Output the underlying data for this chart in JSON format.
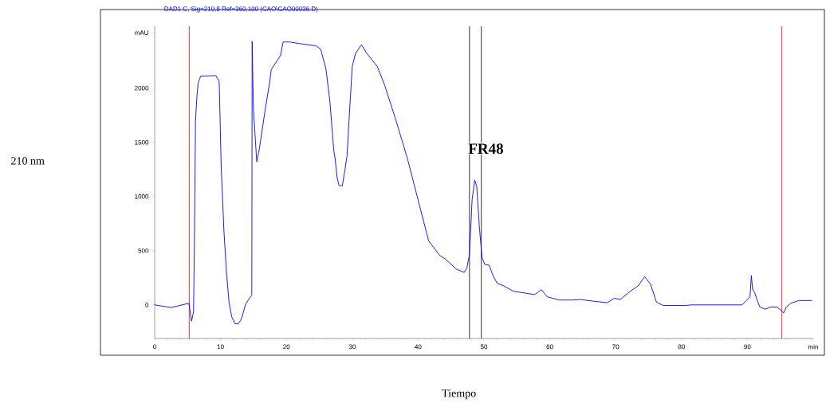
{
  "chart_data": {
    "type": "line",
    "title": "DAD1 C, Sig=210,8 Ref=360,100 (CAO\\CAO00036.D)",
    "xlabel": "Tiempo",
    "series": [
      {
        "color": "#0000ff",
        "x": [
          0,
          2.5,
          5.2,
          5.6,
          5.9,
          6.0,
          6.1,
          6.2,
          6.4,
          6.6,
          7.0,
          9.3,
          9.8,
          10.1,
          10.3,
          10.5,
          10.9,
          11.3,
          11.7,
          12.2,
          12.7,
          13.2,
          13.8,
          14.6,
          14.75,
          14.8,
          14.85,
          15.0,
          15.5,
          15.9,
          16.8,
          17.5,
          17.7,
          19.1,
          19.5,
          20.5,
          22,
          24.5,
          25.2,
          26.0,
          26.6,
          27.2,
          27.4,
          27.7,
          28.0,
          28.5,
          28.9,
          29.2,
          29.5,
          30.0,
          30.5,
          31.4,
          32.2,
          33.8,
          34.9,
          36.6,
          38.4,
          41.6,
          43.3,
          44.1,
          45.8,
          47.0,
          47.4,
          47.8,
          48.2,
          48.6,
          48.9,
          49.3,
          49.7,
          50.1,
          50.8,
          51.4,
          52.0,
          53.0,
          54.5,
          57.7,
          58.7,
          59.6,
          61.4,
          63.4,
          64.6,
          66.5,
          68.7,
          69.8,
          70.7,
          72.2,
          73.4,
          74.4,
          75.3,
          76.2,
          77.2,
          80.7,
          81.5,
          89.2,
          90.4,
          90.6,
          90.8,
          91.1,
          91.5,
          91.9,
          92.7,
          93.5,
          94.5,
          95.1,
          95.5,
          95.9,
          96.6,
          97.8,
          99.8
        ],
        "values": [
          0,
          -25,
          15,
          -150,
          -65,
          375,
          1015,
          1700,
          1910,
          2050,
          2110,
          2115,
          2060,
          1270,
          1000,
          700,
          300,
          20,
          -110,
          -175,
          -175,
          -125,
          5,
          80,
          90,
          2430,
          2250,
          1800,
          1320,
          1440,
          1810,
          2070,
          2170,
          2300,
          2425,
          2425,
          2410,
          2390,
          2360,
          2180,
          1880,
          1420,
          1350,
          1175,
          1100,
          1100,
          1250,
          1370,
          1690,
          2200,
          2320,
          2400,
          2320,
          2200,
          2030,
          1710,
          1345,
          590,
          455,
          425,
          330,
          300,
          340,
          465,
          970,
          1150,
          1095,
          720,
          440,
          375,
          365,
          265,
          200,
          175,
          125,
          95,
          140,
          75,
          45,
          45,
          50,
          35,
          20,
          60,
          50,
          125,
          175,
          260,
          190,
          25,
          -5,
          -5,
          0,
          0,
          75,
          270,
          140,
          115,
          40,
          -20,
          -40,
          -20,
          -20,
          -50,
          -75,
          -20,
          15,
          40,
          40
        ]
      }
    ],
    "xlim": [
      0,
      100
    ],
    "ylim": [
      -310,
      2570
    ],
    "xticks": [
      0,
      10,
      20,
      30,
      40,
      50,
      60,
      70,
      80,
      90,
      {
        "value": 100,
        "label": "min"
      }
    ],
    "yticks": [
      0,
      500,
      1000,
      1500,
      2000,
      {
        "value": 2510,
        "label": "mAU"
      }
    ],
    "ref_lines": [
      {
        "axis": "x",
        "value": 5.25,
        "color": "#ff0000"
      },
      {
        "axis": "x",
        "value": 95.2,
        "color": "#ff0000"
      },
      {
        "axis": "x",
        "value": 47.8,
        "color": "#000000"
      },
      {
        "axis": "x",
        "value": 49.6,
        "color": "#000000"
      }
    ],
    "annotations": [
      {
        "text": "FR48",
        "x": 48.6,
        "y": 1150
      },
      "210 nm"
    ]
  }
}
